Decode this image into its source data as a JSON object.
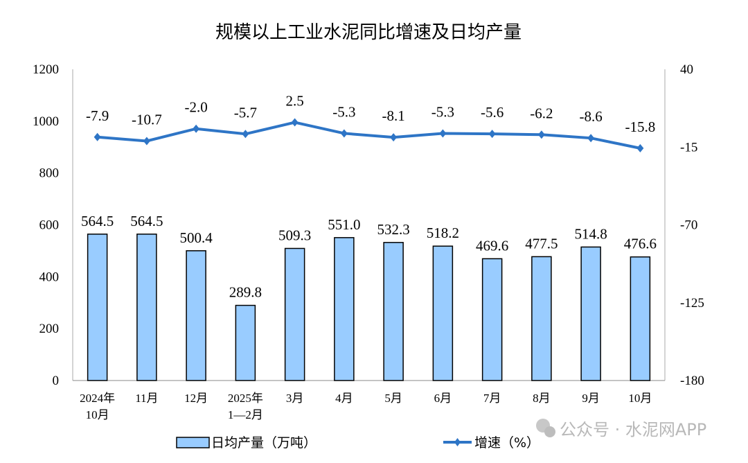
{
  "chart_data": {
    "type": "bar+line",
    "title": "规模以上工业水泥同比增速及日均产量",
    "categories": [
      "2024年\n10月",
      "11月",
      "12月",
      "2025年\n1—2月",
      "3月",
      "4月",
      "5月",
      "6月",
      "7月",
      "8月",
      "9月",
      "10月"
    ],
    "series": [
      {
        "name": "日均产量（万吨）",
        "type": "bar",
        "axis": "left",
        "color": "#99CCFF",
        "values": [
          564.5,
          564.5,
          500.4,
          289.8,
          509.3,
          551.0,
          532.3,
          518.2,
          469.6,
          477.5,
          514.8,
          476.6
        ]
      },
      {
        "name": "增速（%）",
        "type": "line",
        "axis": "right",
        "color": "#2E75C6",
        "values": [
          -7.9,
          -10.7,
          -2.0,
          -5.7,
          2.5,
          -5.3,
          -8.1,
          -5.3,
          -5.6,
          -6.2,
          -8.6,
          -15.8
        ]
      }
    ],
    "left_axis": {
      "ylim": [
        0,
        1200
      ],
      "ticks": [
        0,
        200,
        400,
        600,
        800,
        1000,
        1200
      ]
    },
    "right_axis": {
      "ylim": [
        -180,
        40
      ],
      "ticks": [
        -180,
        -125,
        -70,
        -15,
        40
      ]
    },
    "grid": false,
    "legend": "bottom"
  },
  "watermark": "公众号 · 水泥网APP"
}
